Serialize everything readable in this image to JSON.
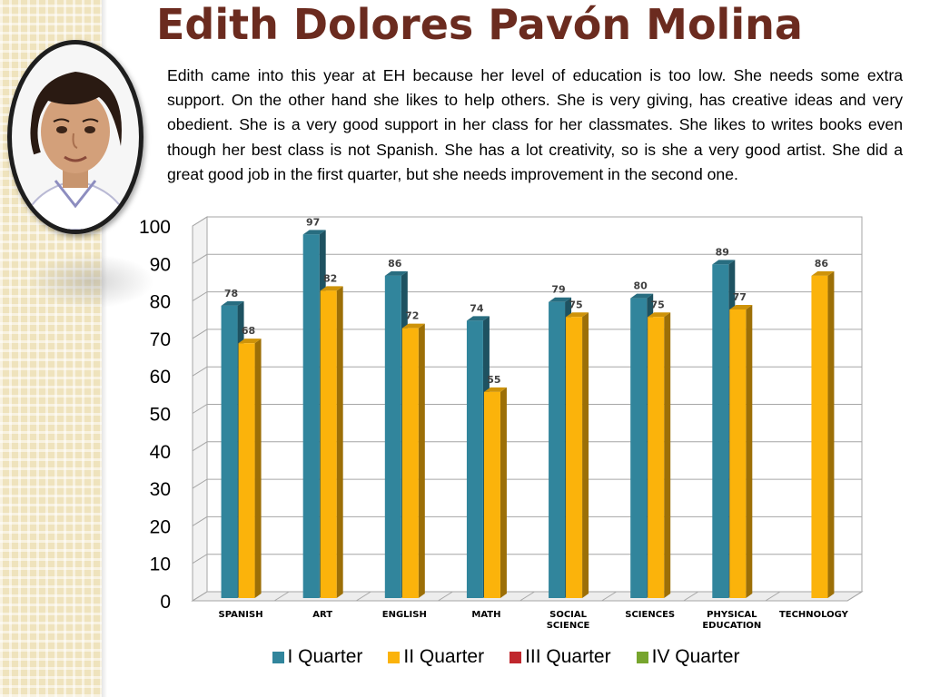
{
  "slide": {
    "title": "Edith Dolores Pavón Molina",
    "description": "Edith came into this year at EH because her level of education is too low.  She needs some extra support.  On the other hand she likes to help others.  She is very giving, has creative ideas and very obedient.  She is a very good support in her class for her classmates.  She likes to writes  books even though her best class is not Spanish. She has a lot creativity, so is she a very good artist.   She did a great good job in the first quarter, but  she needs improvement in the second one."
  },
  "chart_data": {
    "type": "bar",
    "style": "3d-clustered-column",
    "categories": [
      [
        "SPANISH"
      ],
      [
        "ART"
      ],
      [
        "ENGLISH"
      ],
      [
        "MATH"
      ],
      [
        "SOCIAL",
        "SCIENCE"
      ],
      [
        "SCIENCES"
      ],
      [
        "PHYSICAL",
        "EDUCATION"
      ],
      [
        "TECHNOLOGY"
      ]
    ],
    "series": [
      {
        "name": "I Quarter",
        "color": "#31859c",
        "values": [
          78,
          97,
          86,
          74,
          79,
          80,
          89,
          null
        ]
      },
      {
        "name": "II Quarter",
        "color": "#fbb30b",
        "values": [
          68,
          82,
          72,
          55,
          75,
          75,
          77,
          86
        ]
      },
      {
        "name": "III Quarter",
        "color": "#c0272d",
        "values": [
          null,
          null,
          null,
          null,
          null,
          null,
          null,
          null
        ]
      },
      {
        "name": "IV Quarter",
        "color": "#77a52e",
        "values": [
          null,
          null,
          null,
          null,
          null,
          null,
          null,
          null
        ]
      }
    ],
    "y_ticks": [
      "0",
      "10",
      "20",
      "30",
      "40",
      "50",
      "60",
      "70",
      "80",
      "90",
      "100"
    ],
    "ylim": [
      0,
      100
    ],
    "gridlines": true,
    "data_labels": true,
    "legend_position": "bottom"
  }
}
